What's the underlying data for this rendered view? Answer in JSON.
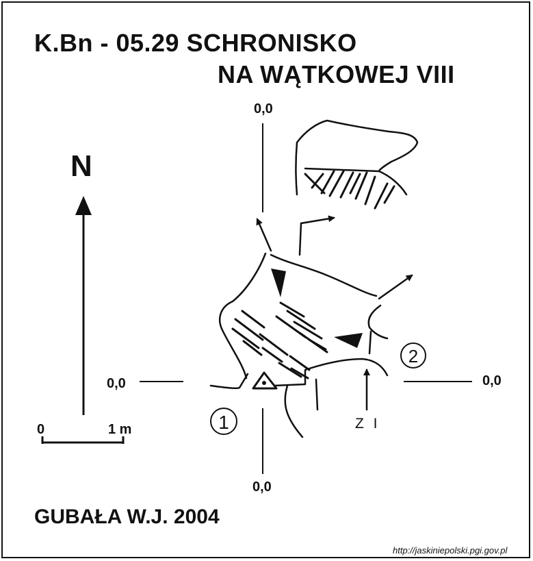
{
  "title": {
    "line1": "K.Bn - 05.29  SCHRONISKO",
    "line2": "NA WĄTKOWEJ VIII"
  },
  "north_label": "N",
  "datum_labels": {
    "top": "0,0",
    "left": "0,0",
    "right": "0,0",
    "bottom": "0,0"
  },
  "scale_bar": {
    "start_label": "0",
    "end_label": "1 m"
  },
  "entrance_labels": {
    "one": "1",
    "two": "2"
  },
  "marker_label": "Z I",
  "author": "GUBAŁA W.J. 2004",
  "source_url": "http://jaskiniepolski.pgi.gov.pl",
  "colors": {
    "ink": "#111111",
    "background": "#ffffff"
  }
}
